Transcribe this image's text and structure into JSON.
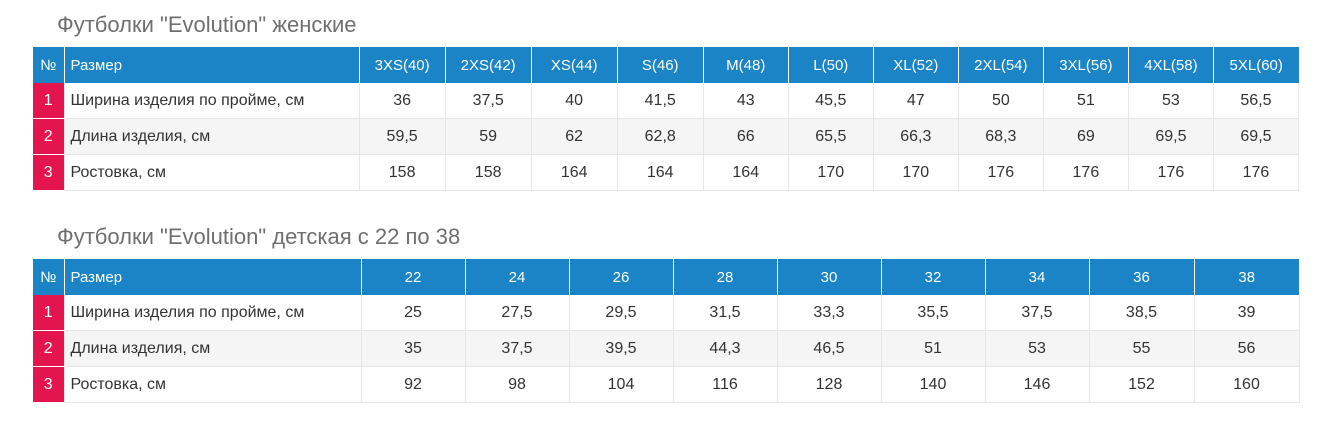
{
  "colors": {
    "header_bg": "#1a84c6",
    "header_text": "#ffffff",
    "number_bg": "#e4144f",
    "stripe_bg": "#f5f5f5",
    "title_text": "#6f6f6f"
  },
  "tables": [
    {
      "title": "Футболки \"Evolution\" женские",
      "num_header": "№",
      "label_header": "Размер",
      "sizes": [
        "3XS(40)",
        "2XS(42)",
        "XS(44)",
        "S(46)",
        "M(48)",
        "L(50)",
        "XL(52)",
        "2XL(54)",
        "3XL(56)",
        "4XL(58)",
        "5XL(60)"
      ],
      "rows": [
        {
          "num": "1",
          "label": "Ширина изделия по пройме, см",
          "values": [
            "36",
            "37,5",
            "40",
            "41,5",
            "43",
            "45,5",
            "47",
            "50",
            "51",
            "53",
            "56,5"
          ]
        },
        {
          "num": "2",
          "label": "Длина изделия, см",
          "values": [
            "59,5",
            "59",
            "62",
            "62,8",
            "66",
            "65,5",
            "66,3",
            "68,3",
            "69",
            "69,5",
            "69,5"
          ]
        },
        {
          "num": "3",
          "label": "Ростовка, см",
          "values": [
            "158",
            "158",
            "164",
            "164",
            "164",
            "170",
            "170",
            "176",
            "176",
            "176",
            "176"
          ]
        }
      ]
    },
    {
      "title": "Футболки \"Evolution\" детская с 22 по 38",
      "num_header": "№",
      "label_header": "Размер",
      "sizes": [
        "22",
        "24",
        "26",
        "28",
        "30",
        "32",
        "34",
        "36",
        "38"
      ],
      "rows": [
        {
          "num": "1",
          "label": "Ширина изделия по пройме, см",
          "values": [
            "25",
            "27,5",
            "29,5",
            "31,5",
            "33,3",
            "35,5",
            "37,5",
            "38,5",
            "39"
          ]
        },
        {
          "num": "2",
          "label": "Длина изделия, см",
          "values": [
            "35",
            "37,5",
            "39,5",
            "44,3",
            "46,5",
            "51",
            "53",
            "55",
            "56"
          ]
        },
        {
          "num": "3",
          "label": "Ростовка, см",
          "values": [
            "92",
            "98",
            "104",
            "116",
            "128",
            "140",
            "146",
            "152",
            "160"
          ]
        }
      ]
    }
  ]
}
